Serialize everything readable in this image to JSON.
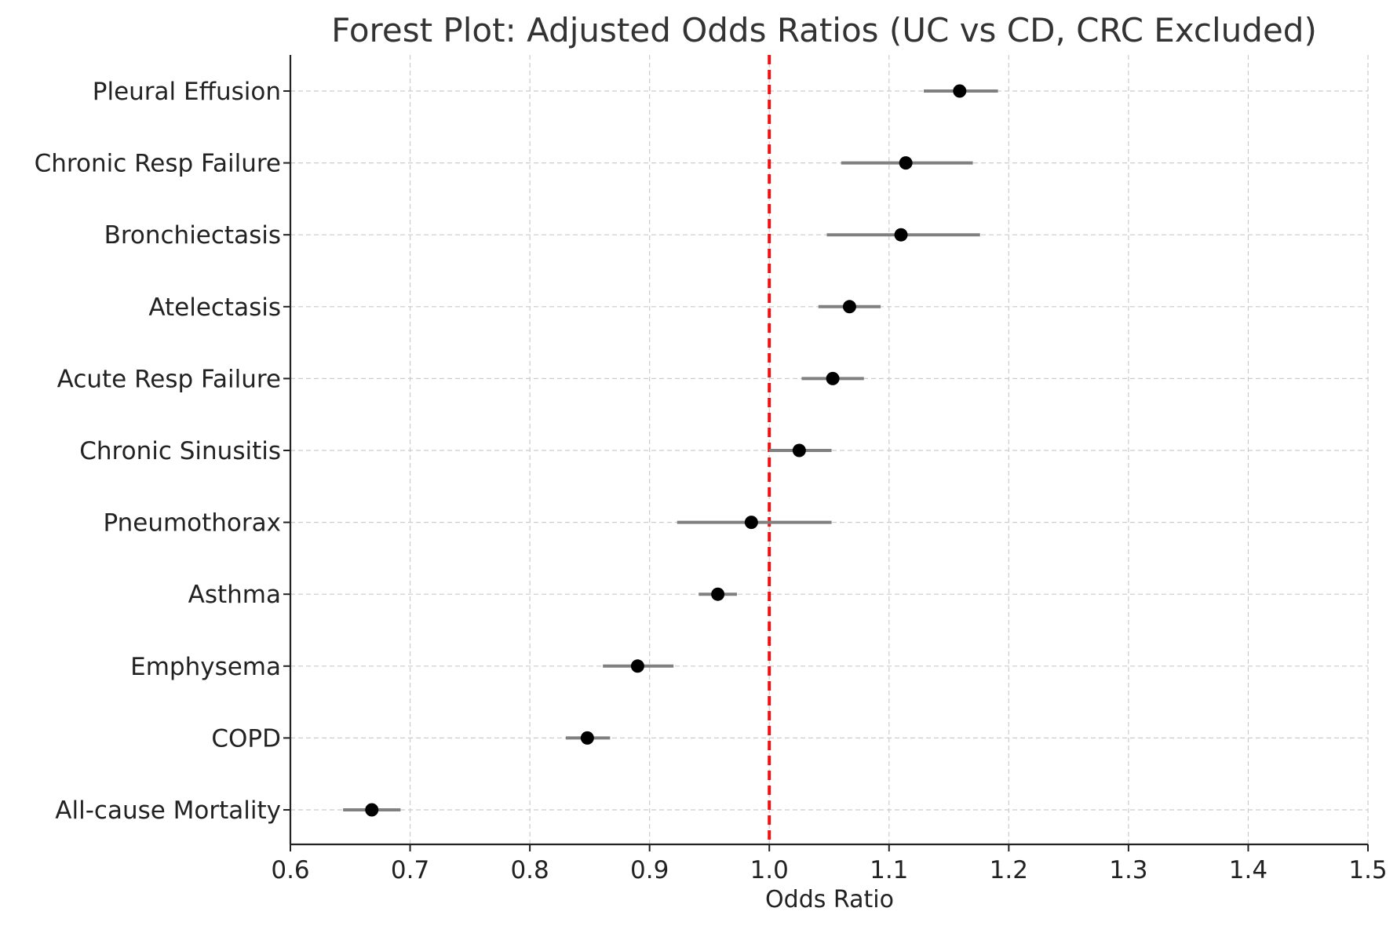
{
  "chart_data": {
    "type": "forest",
    "title": "Forest Plot: Adjusted Odds Ratios (UC vs CD, CRC Excluded)",
    "xlabel": "Odds Ratio",
    "ylabel": "",
    "xlim": [
      0.6,
      1.5
    ],
    "xticks": [
      0.6,
      0.7,
      0.8,
      0.9,
      1.0,
      1.1,
      1.2,
      1.3,
      1.4,
      1.5
    ],
    "xtick_labels": [
      "0.6",
      "0.7",
      "0.8",
      "0.9",
      "1.0",
      "1.1",
      "1.2",
      "1.3",
      "1.4",
      "1.5"
    ],
    "reference_line": 1.0,
    "reference_color": "#ee1111",
    "point_color": "#000000",
    "ci_color": "#808080",
    "grid": true,
    "rows": [
      {
        "label": "Pleural Effusion",
        "or": 1.159,
        "lower": 1.129,
        "upper": 1.191
      },
      {
        "label": "Chronic Resp Failure",
        "or": 1.114,
        "lower": 1.06,
        "upper": 1.17
      },
      {
        "label": "Bronchiectasis",
        "or": 1.11,
        "lower": 1.048,
        "upper": 1.176
      },
      {
        "label": "Atelectasis",
        "or": 1.067,
        "lower": 1.041,
        "upper": 1.093
      },
      {
        "label": "Acute Resp Failure",
        "or": 1.053,
        "lower": 1.027,
        "upper": 1.079
      },
      {
        "label": "Chronic Sinusitis",
        "or": 1.025,
        "lower": 1.0,
        "upper": 1.052
      },
      {
        "label": "Pneumothorax",
        "or": 0.985,
        "lower": 0.923,
        "upper": 1.052
      },
      {
        "label": "Asthma",
        "or": 0.957,
        "lower": 0.941,
        "upper": 0.973
      },
      {
        "label": "Emphysema",
        "or": 0.89,
        "lower": 0.861,
        "upper": 0.92
      },
      {
        "label": "COPD",
        "or": 0.848,
        "lower": 0.83,
        "upper": 0.867
      },
      {
        "label": "All-cause Mortality",
        "or": 0.668,
        "lower": 0.644,
        "upper": 0.692
      }
    ]
  }
}
